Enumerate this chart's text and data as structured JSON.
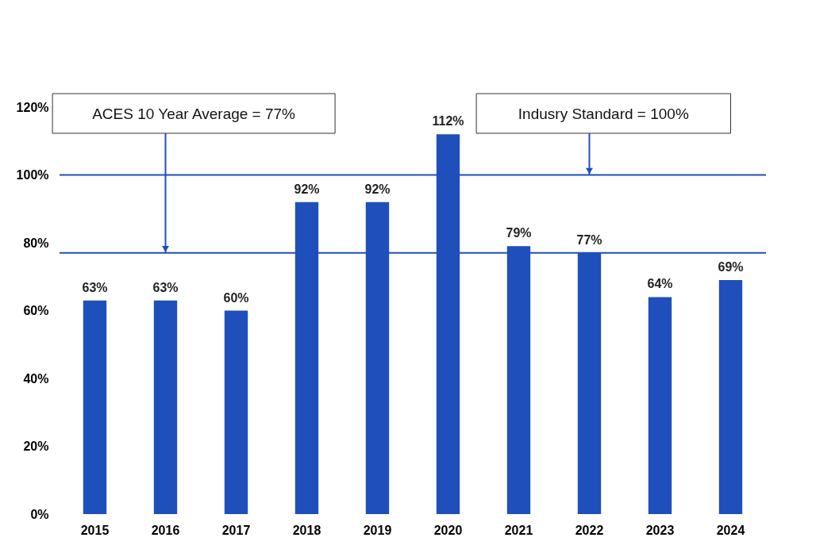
{
  "chart_data": {
    "type": "bar",
    "categories": [
      "2015",
      "2016",
      "2017",
      "2018",
      "2019",
      "2020",
      "2021",
      "2022",
      "2023",
      "2024"
    ],
    "values": [
      63,
      63,
      60,
      92,
      92,
      112,
      79,
      77,
      64,
      69
    ],
    "value_labels": [
      "63%",
      "63%",
      "60%",
      "92%",
      "92%",
      "112%",
      "79%",
      "77%",
      "64%",
      "69%"
    ],
    "color": "#1f4fba",
    "ylim": [
      0,
      120
    ],
    "yticks": [
      {
        "value": 0,
        "label": "0%"
      },
      {
        "value": 20,
        "label": "20%"
      },
      {
        "value": 40,
        "label": "40%"
      },
      {
        "value": 60,
        "label": "60%"
      },
      {
        "value": 80,
        "label": "80%"
      },
      {
        "value": 100,
        "label": "100%"
      },
      {
        "value": 120,
        "label": "120%"
      }
    ],
    "ref_lines": [
      {
        "axis": "y",
        "value": 77,
        "color": "#1f4fba"
      },
      {
        "axis": "y",
        "value": 100,
        "color": "#1f4fba"
      }
    ],
    "annotations": [
      {
        "text": "ACES 10 Year Average = 77%",
        "x": "2016",
        "y": 77
      },
      {
        "text": "Indusry Standard = 100%",
        "x": "2022",
        "y": 100
      }
    ],
    "grid": false
  }
}
